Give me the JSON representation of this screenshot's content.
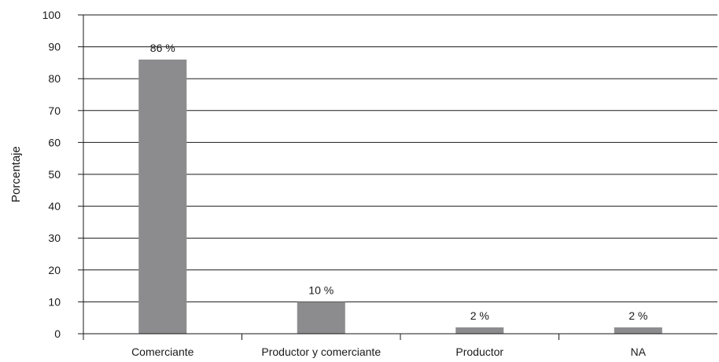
{
  "chart_data": {
    "type": "bar",
    "categories": [
      "Comerciante",
      "Productor y comerciante",
      "Productor",
      "NA"
    ],
    "values": [
      86,
      10,
      2,
      2
    ],
    "data_labels": [
      "86 %",
      "10 %",
      "2 %",
      "2 %"
    ],
    "title": "",
    "xlabel": "",
    "ylabel": "Porcentaje",
    "ylim": [
      0,
      100
    ],
    "yticks": [
      0,
      10,
      20,
      30,
      40,
      50,
      60,
      70,
      80,
      90,
      100
    ],
    "grid": true,
    "legend": "none",
    "bar_color": "#8c8c8e"
  }
}
